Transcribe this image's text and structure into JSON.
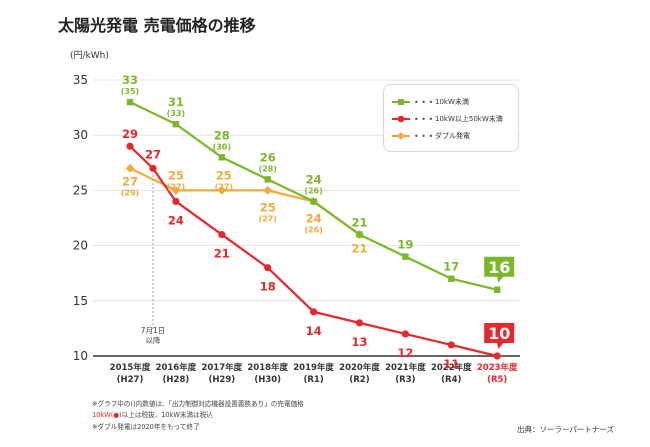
{
  "title": "太陽光発電 売電価格の推移",
  "source": "出典：ソーラーパートナーズ",
  "notes": {
    "line1": "※グラフ中の()内数値は、「出力制御対応機器設置義務あり」の売電価格",
    "line2_red": "10kW(●)",
    "line2_rest": "以上は税抜、10kW未満は税込",
    "line3": "※ダブル発電は2020年をもって終了"
  },
  "colors": {
    "green": "#7ab829",
    "red": "#e8262b",
    "orange": "#f3a93c",
    "axis": "#333333",
    "grid": "#e3e3e3",
    "tick_r5": "#e8262b"
  },
  "chart_data": {
    "type": "line",
    "ylabel": "(円/kWh)",
    "ylim": [
      10,
      35
    ],
    "yticks": [
      10,
      15,
      20,
      25,
      30,
      35
    ],
    "grid": true,
    "legend_position": "top-right",
    "categories": [
      "2015年度",
      "2016年度",
      "2017年度",
      "2018年度",
      "2019年度",
      "2020年度",
      "2021年度",
      "2022年度",
      "2023年度"
    ],
    "categories_sub": [
      "(H27)",
      "(H28)",
      "(H29)",
      "(H30)",
      "(R1)",
      "(R2)",
      "(R3)",
      "(R4)",
      "(R5)"
    ],
    "annotation_2015": [
      "7月1日",
      "以降"
    ],
    "series": [
      {
        "name": "10kW未満",
        "color": "green",
        "marker": "square",
        "points": [
          {
            "x": 0,
            "y": 33
          },
          {
            "x": 1,
            "y": 31
          },
          {
            "x": 2,
            "y": 28
          },
          {
            "x": 3,
            "y": 26
          },
          {
            "x": 4,
            "y": 24
          },
          {
            "x": 5,
            "y": 21
          },
          {
            "x": 6,
            "y": 19
          },
          {
            "x": 7,
            "y": 17
          },
          {
            "x": 8,
            "y": 16
          }
        ],
        "labels": [
          {
            "x": 0,
            "main": "33",
            "sub": "(35)"
          },
          {
            "x": 1,
            "main": "31",
            "sub": "(33)"
          },
          {
            "x": 2,
            "main": "28",
            "sub": "(30)"
          },
          {
            "x": 3,
            "main": "26",
            "sub": "(28)"
          },
          {
            "x": 4,
            "main": "24",
            "sub": "(26)"
          },
          {
            "x": 5,
            "main": "21",
            "sub": ""
          },
          {
            "x": 6,
            "main": "19",
            "sub": ""
          },
          {
            "x": 7,
            "main": "17",
            "sub": ""
          }
        ],
        "callout": "16"
      },
      {
        "name": "10kW以上50kW未満",
        "color": "red",
        "marker": "circle",
        "points": [
          {
            "x": 0,
            "y": 29
          },
          {
            "x": 0.5,
            "y": 27
          },
          {
            "x": 1,
            "y": 24
          },
          {
            "x": 2,
            "y": 21
          },
          {
            "x": 3,
            "y": 18
          },
          {
            "x": 4,
            "y": 14
          },
          {
            "x": 5,
            "y": 13
          },
          {
            "x": 6,
            "y": 12
          },
          {
            "x": 7,
            "y": 11
          },
          {
            "x": 8,
            "y": 10
          }
        ],
        "labels": [
          {
            "x": 0,
            "main": "29",
            "sub": ""
          },
          {
            "x": 0.5,
            "main": "27",
            "sub": ""
          },
          {
            "x": 1,
            "main": "24",
            "sub": ""
          },
          {
            "x": 2,
            "main": "21",
            "sub": ""
          },
          {
            "x": 3,
            "main": "18",
            "sub": ""
          },
          {
            "x": 4,
            "main": "14",
            "sub": ""
          },
          {
            "x": 5,
            "main": "13",
            "sub": ""
          },
          {
            "x": 6,
            "main": "12",
            "sub": ""
          },
          {
            "x": 7,
            "main": "11",
            "sub": ""
          }
        ],
        "callout": "10"
      },
      {
        "name": "ダブル発電",
        "color": "orange",
        "marker": "diamond",
        "points": [
          {
            "x": 0,
            "y": 27
          },
          {
            "x": 1,
            "y": 25
          },
          {
            "x": 2,
            "y": 25
          },
          {
            "x": 3,
            "y": 25
          },
          {
            "x": 4,
            "y": 24
          },
          {
            "x": 5,
            "y": 21
          }
        ],
        "labels": [
          {
            "x": 0,
            "main": "27",
            "sub": "(29)"
          },
          {
            "x": 1,
            "main": "25",
            "sub": "(27)"
          },
          {
            "x": 2,
            "main": "25",
            "sub": "(27)"
          },
          {
            "x": 3,
            "main": "25",
            "sub": "(27)"
          },
          {
            "x": 4,
            "main": "24",
            "sub": "(26)"
          },
          {
            "x": 5,
            "main": "21",
            "sub": ""
          }
        ]
      }
    ]
  }
}
